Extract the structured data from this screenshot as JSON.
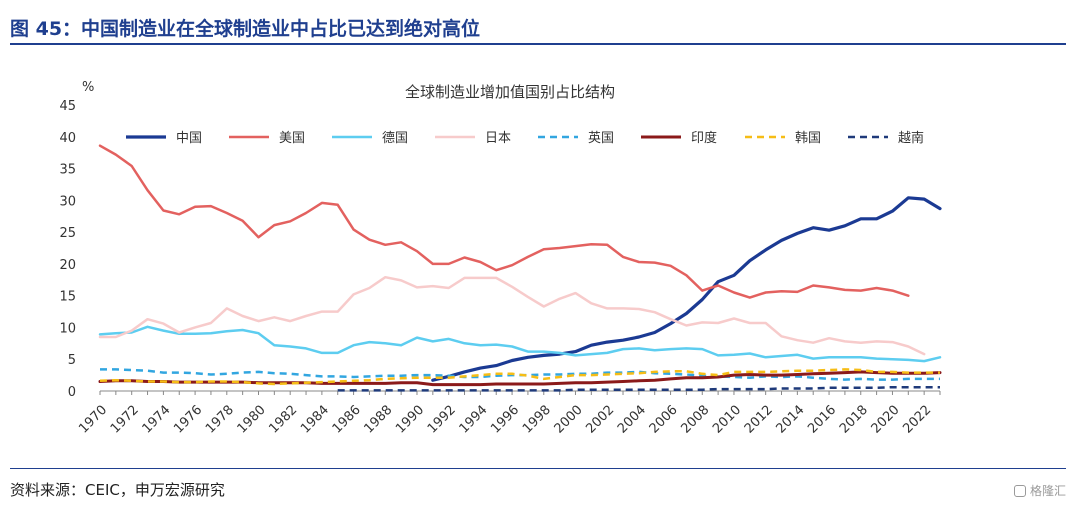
{
  "header": {
    "figure_title": "图 45：中国制造业在全球制造业中占比已达到绝对高位"
  },
  "footer": {
    "source": "资料来源：CEIC，申万宏源研究",
    "watermark": "格隆汇"
  },
  "colors": {
    "brand": "#1f3f8f"
  },
  "chart_data": {
    "type": "line",
    "title": "全球制造业增加值国别占比结构",
    "ylabel": "%",
    "xlabel": "",
    "ylim": [
      0,
      45
    ],
    "xlim": [
      1970,
      2023
    ],
    "yticks": [
      0,
      5,
      10,
      15,
      20,
      25,
      30,
      35,
      40,
      45
    ],
    "xticks": [
      1970,
      1972,
      1974,
      1976,
      1978,
      1980,
      1982,
      1984,
      1986,
      1988,
      1990,
      1992,
      1994,
      1996,
      1998,
      2000,
      2002,
      2004,
      2006,
      2008,
      2010,
      2012,
      2014,
      2016,
      2018,
      2020,
      2022
    ],
    "legend_position": "top",
    "series": [
      {
        "name": "中国",
        "color": "#1b3a93",
        "dash": "solid",
        "width": 3.2,
        "start": 1991,
        "values": [
          1.7,
          2.3,
          3.0,
          3.6,
          4.0,
          4.8,
          5.3,
          5.6,
          5.8,
          6.2,
          7.2,
          7.7,
          8.0,
          8.5,
          9.2,
          10.6,
          12.2,
          14.4,
          17.2,
          18.2,
          20.5,
          22.2,
          23.7,
          24.8,
          25.7,
          25.3,
          26.0,
          27.1,
          27.1,
          28.3,
          30.4,
          30.2,
          28.7
        ]
      },
      {
        "name": "美国",
        "color": "#e3615f",
        "dash": "solid",
        "width": 2.5,
        "start": 1970,
        "values": [
          38.6,
          37.2,
          35.4,
          31.6,
          28.4,
          27.8,
          29.0,
          29.1,
          28.0,
          26.8,
          24.2,
          26.1,
          26.7,
          28.0,
          29.6,
          29.3,
          25.4,
          23.8,
          23.0,
          23.4,
          22.0,
          20.0,
          20.0,
          21.0,
          20.3,
          19.0,
          19.8,
          21.1,
          22.3,
          22.5,
          22.8,
          23.1,
          23.0,
          21.1,
          20.3,
          20.2,
          19.7,
          18.2,
          15.8,
          16.6,
          15.5,
          14.7,
          15.5,
          15.7,
          15.6,
          16.6,
          16.3,
          15.9,
          15.8,
          16.2,
          15.8,
          15.0
        ]
      },
      {
        "name": "德国",
        "color": "#5dcdf0",
        "dash": "solid",
        "width": 2.5,
        "start": 1970,
        "values": [
          8.9,
          9.1,
          9.2,
          10.1,
          9.5,
          9.0,
          9.0,
          9.1,
          9.4,
          9.6,
          9.1,
          7.2,
          7.0,
          6.7,
          6.0,
          6.0,
          7.2,
          7.7,
          7.5,
          7.2,
          8.4,
          7.8,
          8.2,
          7.5,
          7.2,
          7.3,
          7.0,
          6.2,
          6.2,
          6.0,
          5.6,
          5.8,
          6.0,
          6.6,
          6.7,
          6.4,
          6.6,
          6.7,
          6.6,
          5.6,
          5.7,
          5.9,
          5.3,
          5.5,
          5.7,
          5.1,
          5.3,
          5.3,
          5.3,
          5.1,
          5.0,
          4.9,
          4.7,
          5.3
        ]
      },
      {
        "name": "日本",
        "color": "#f7cbcb",
        "dash": "solid",
        "width": 2.5,
        "start": 1970,
        "values": [
          8.5,
          8.5,
          9.5,
          11.3,
          10.6,
          9.2,
          10.0,
          10.7,
          13.0,
          11.8,
          11.0,
          11.6,
          11.0,
          11.8,
          12.5,
          12.5,
          15.2,
          16.2,
          17.9,
          17.4,
          16.3,
          16.5,
          16.2,
          17.8,
          17.8,
          17.8,
          16.4,
          14.8,
          13.3,
          14.5,
          15.4,
          13.8,
          13.0,
          13.0,
          12.9,
          12.4,
          11.3,
          10.3,
          10.8,
          10.7,
          11.4,
          10.7,
          10.7,
          8.6,
          8.0,
          7.6,
          8.3,
          7.8,
          7.6,
          7.8,
          7.7,
          7.0,
          5.8
        ]
      },
      {
        "name": "英国",
        "color": "#32a6e0",
        "dash": "dashed",
        "width": 2.5,
        "start": 1970,
        "values": [
          3.4,
          3.4,
          3.3,
          3.2,
          2.9,
          2.9,
          2.8,
          2.6,
          2.7,
          2.9,
          3.0,
          2.8,
          2.7,
          2.5,
          2.3,
          2.3,
          2.2,
          2.3,
          2.4,
          2.4,
          2.5,
          2.5,
          2.4,
          2.2,
          2.2,
          2.4,
          2.5,
          2.5,
          2.6,
          2.6,
          2.7,
          2.7,
          2.9,
          2.9,
          3.0,
          2.8,
          2.7,
          2.6,
          2.4,
          2.3,
          2.2,
          2.1,
          2.3,
          2.2,
          2.3,
          2.1,
          1.9,
          1.8,
          1.9,
          1.8,
          1.8,
          1.9,
          1.9,
          1.9
        ]
      },
      {
        "name": "印度",
        "color": "#8b1a1a",
        "dash": "solid",
        "width": 3.0,
        "start": 1970,
        "values": [
          1.5,
          1.6,
          1.6,
          1.5,
          1.5,
          1.4,
          1.4,
          1.4,
          1.4,
          1.4,
          1.3,
          1.3,
          1.3,
          1.3,
          1.2,
          1.2,
          1.2,
          1.2,
          1.2,
          1.3,
          1.3,
          1.0,
          1.0,
          1.0,
          1.0,
          1.1,
          1.1,
          1.1,
          1.1,
          1.2,
          1.3,
          1.3,
          1.4,
          1.5,
          1.6,
          1.7,
          1.9,
          2.1,
          2.1,
          2.2,
          2.5,
          2.6,
          2.5,
          2.5,
          2.6,
          2.7,
          2.8,
          2.9,
          3.0,
          2.9,
          2.8,
          2.8,
          2.8,
          2.9
        ]
      },
      {
        "name": "韩国",
        "color": "#f6bd16",
        "dash": "dashed",
        "width": 2.5,
        "start": 1970,
        "values": [
          1.6,
          1.7,
          1.6,
          1.5,
          1.5,
          1.4,
          1.4,
          1.5,
          1.5,
          1.4,
          1.2,
          1.1,
          1.2,
          1.3,
          1.4,
          1.5,
          1.6,
          1.7,
          1.9,
          2.0,
          2.1,
          2.1,
          2.1,
          2.3,
          2.5,
          2.7,
          2.7,
          2.4,
          1.9,
          2.2,
          2.5,
          2.5,
          2.6,
          2.7,
          2.8,
          3.0,
          3.1,
          3.1,
          2.7,
          2.5,
          3.0,
          3.0,
          3.0,
          3.1,
          3.2,
          3.2,
          3.3,
          3.4,
          3.3,
          3.0,
          3.0,
          2.9,
          2.9,
          2.9
        ]
      },
      {
        "name": "越南",
        "color": "#1f3a7a",
        "dash": "dashed",
        "width": 2.5,
        "start": 1985,
        "values": [
          0.1,
          0.1,
          0.1,
          0.1,
          0.1,
          0.1,
          0.1,
          0.1,
          0.1,
          0.1,
          0.1,
          0.1,
          0.1,
          0.1,
          0.1,
          0.2,
          0.2,
          0.2,
          0.2,
          0.2,
          0.2,
          0.2,
          0.2,
          0.2,
          0.3,
          0.3,
          0.3,
          0.3,
          0.4,
          0.4,
          0.4,
          0.5,
          0.5,
          0.5,
          0.5,
          0.6,
          0.6,
          0.6,
          0.6
        ]
      }
    ]
  }
}
